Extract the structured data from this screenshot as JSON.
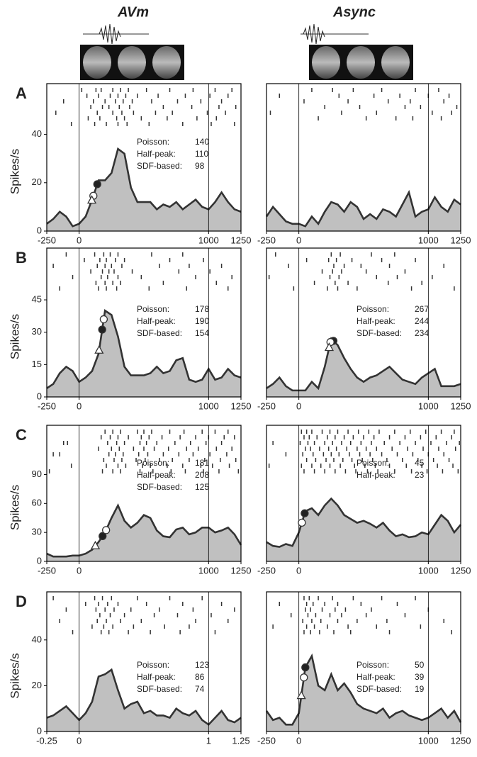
{
  "columns": [
    "AVm",
    "Async"
  ],
  "rows": [
    "A",
    "B",
    "C",
    "D"
  ],
  "y_label": "Spikes/s",
  "chart_data": [
    {
      "type": "area",
      "x": [
        -250,
        -200,
        -150,
        -100,
        -50,
        0,
        50,
        100,
        150,
        200,
        250,
        300,
        350,
        400,
        450,
        500,
        550,
        600,
        650,
        700,
        750,
        800,
        850,
        900,
        950,
        1000,
        1050,
        1100,
        1150,
        1200,
        1250
      ],
      "values": [
        3,
        5,
        8,
        6,
        2,
        3,
        6,
        13,
        21,
        21,
        24,
        34,
        32,
        18,
        12,
        12,
        12,
        9,
        11,
        10,
        12,
        9,
        11,
        13,
        10,
        9,
        12,
        16,
        12,
        9,
        8
      ],
      "xlim": [
        -250,
        1250
      ],
      "xticks": [
        -250,
        0,
        1000,
        1250
      ],
      "ylim": [
        0,
        61
      ],
      "yticks": [
        0,
        20,
        40
      ],
      "latency_labels": [
        "Poisson:",
        "Half-peak:",
        "SDF-based:"
      ],
      "latencies": [
        140,
        110,
        98
      ],
      "raster": [
        [
          20,
          130,
          170,
          260,
          320,
          380,
          520,
          700,
          880,
          1050,
          1180
        ],
        [
          60,
          150,
          240,
          300,
          360,
          450,
          610,
          820,
          1010,
          1150
        ],
        [
          -120,
          110,
          200,
          280,
          340,
          410,
          560,
          760,
          940,
          1100
        ],
        [
          90,
          180,
          230,
          310,
          390,
          650,
          870,
          1080,
          1210
        ],
        [
          -180,
          140,
          260,
          330,
          420,
          590,
          720,
          990,
          1130
        ],
        [
          70,
          160,
          290,
          350,
          480,
          680,
          910,
          1060
        ],
        [
          -60,
          120,
          210,
          300,
          370,
          540,
          800,
          1020,
          1200
        ]
      ]
    },
    {
      "type": "area",
      "x": [
        -250,
        -200,
        -150,
        -100,
        -50,
        0,
        50,
        100,
        150,
        200,
        250,
        300,
        350,
        400,
        450,
        500,
        550,
        600,
        650,
        700,
        750,
        800,
        850,
        900,
        950,
        1000,
        1050,
        1100,
        1150,
        1200,
        1250
      ],
      "values": [
        6,
        10,
        7,
        4,
        3,
        3,
        2,
        6,
        3,
        8,
        12,
        11,
        8,
        12,
        10,
        5,
        7,
        5,
        9,
        8,
        6,
        11,
        16,
        6,
        8,
        9,
        14,
        10,
        8,
        13,
        11
      ],
      "xlim": [
        -250,
        1250
      ],
      "xticks": [
        -250,
        0,
        1000,
        1250
      ],
      "ylim": [
        0,
        61
      ],
      "raster": [
        [
          100,
          260,
          420,
          640,
          900,
          1080
        ],
        [
          -150,
          310,
          580,
          780,
          1000,
          1160
        ],
        [
          40,
          380,
          690,
          860,
          1120
        ],
        [
          200,
          470,
          820,
          940,
          1220
        ],
        [
          -220,
          330,
          600,
          1030,
          1180
        ],
        [
          150,
          520,
          750,
          880,
          1100
        ]
      ]
    },
    {
      "type": "area",
      "x": [
        -250,
        -200,
        -150,
        -100,
        -50,
        0,
        50,
        100,
        150,
        200,
        250,
        300,
        350,
        400,
        450,
        500,
        550,
        600,
        650,
        700,
        750,
        800,
        850,
        900,
        950,
        1000,
        1050,
        1100,
        1150,
        1200,
        1250
      ],
      "values": [
        4,
        6,
        11,
        14,
        12,
        7,
        9,
        12,
        20,
        40,
        38,
        28,
        14,
        10,
        10,
        10,
        11,
        14,
        11,
        12,
        17,
        18,
        8,
        7,
        8,
        13,
        8,
        9,
        13,
        10,
        9
      ],
      "xlim": [
        -250,
        1250
      ],
      "xticks": [
        -250,
        0,
        1000,
        1250
      ],
      "ylim": [
        0,
        69
      ],
      "yticks": [
        0,
        15,
        30,
        45
      ],
      "latency_labels": [
        "Poisson:",
        "Half-peak:",
        "SDF-based:"
      ],
      "latencies": [
        178,
        190,
        154
      ],
      "raster": [
        [
          -100,
          120,
          190,
          240,
          300,
          560,
          800
        ],
        [
          40,
          160,
          210,
          280,
          350,
          700,
          960
        ],
        [
          -200,
          140,
          200,
          250,
          330,
          620,
          850,
          1100
        ],
        [
          90,
          180,
          230,
          270,
          410,
          770,
          1010
        ],
        [
          -50,
          170,
          220,
          300,
          480,
          900,
          1180
        ],
        [
          130,
          200,
          260,
          320,
          650,
          1060
        ],
        [
          -150,
          150,
          210,
          290,
          540,
          830,
          1150
        ]
      ]
    },
    {
      "type": "area",
      "x": [
        -250,
        -200,
        -150,
        -100,
        -50,
        0,
        50,
        100,
        150,
        200,
        250,
        300,
        350,
        400,
        450,
        500,
        550,
        600,
        650,
        700,
        750,
        800,
        850,
        900,
        950,
        1000,
        1050,
        1100,
        1150,
        1200,
        1250
      ],
      "values": [
        4,
        6,
        9,
        5,
        3,
        3,
        3,
        7,
        4,
        14,
        27,
        24,
        18,
        13,
        9,
        7,
        9,
        10,
        12,
        14,
        11,
        8,
        7,
        6,
        9,
        11,
        13,
        5,
        5,
        5,
        6
      ],
      "xlim": [
        -250,
        1250
      ],
      "xticks": [
        -250,
        0,
        1000,
        1250
      ],
      "ylim": [
        0,
        69
      ],
      "latency_labels": [
        "Poisson:",
        "Half-peak:",
        "SDF-based:"
      ],
      "latencies": [
        267,
        244,
        234
      ],
      "raster": [
        [
          -180,
          250,
          320,
          560,
          740
        ],
        [
          60,
          230,
          290,
          410,
          640,
          900
        ],
        [
          -80,
          270,
          350,
          480,
          700,
          1120
        ],
        [
          180,
          260,
          330,
          520,
          820
        ],
        [
          -230,
          240,
          310,
          600,
          760,
          1030
        ],
        [
          120,
          280,
          380,
          690,
          950
        ],
        [
          -40,
          220,
          300,
          450,
          870,
          1200
        ]
      ]
    },
    {
      "type": "area",
      "x": [
        -250,
        -200,
        -150,
        -100,
        -50,
        0,
        50,
        100,
        150,
        200,
        250,
        300,
        350,
        400,
        450,
        500,
        550,
        600,
        650,
        700,
        750,
        800,
        850,
        900,
        950,
        1000,
        1050,
        1100,
        1150,
        1200,
        1250
      ],
      "values": [
        8,
        5,
        5,
        5,
        6,
        6,
        8,
        12,
        20,
        30,
        45,
        58,
        42,
        35,
        40,
        48,
        45,
        32,
        26,
        25,
        33,
        35,
        28,
        30,
        35,
        35,
        30,
        32,
        35,
        28,
        17
      ],
      "xlim": [
        -250,
        1250
      ],
      "xticks": [
        -250,
        0,
        1000,
        1250
      ],
      "ylim": [
        0,
        141
      ],
      "yticks": [
        0,
        30,
        60,
        90
      ],
      "latency_labels": [
        "Poisson:",
        "Half-peak:",
        "SDF-based:"
      ],
      "latencies": [
        181,
        208,
        125
      ],
      "raster": [
        [
          200,
          260,
          320,
          450,
          500,
          560,
          700,
          810,
          950,
          1050,
          1150
        ],
        [
          170,
          240,
          300,
          380,
          480,
          540,
          640,
          780,
          900,
          1000,
          1120,
          1200
        ],
        [
          -120,
          -90,
          220,
          290,
          350,
          470,
          520,
          600,
          740,
          860,
          980,
          1100
        ],
        [
          150,
          250,
          310,
          420,
          500,
          580,
          690,
          830,
          920,
          1060,
          1180
        ],
        [
          -200,
          -150,
          230,
          280,
          340,
          460,
          530,
          650,
          770,
          880,
          1010,
          1140
        ],
        [
          190,
          270,
          330,
          440,
          510,
          620,
          720,
          850,
          970,
          1090,
          1210
        ],
        [
          -60,
          210,
          300,
          360,
          490,
          550,
          680,
          800,
          940,
          1030,
          1160
        ],
        [
          -230,
          180,
          260,
          320,
          470,
          570,
          710,
          820,
          960,
          1080,
          1230
        ]
      ]
    },
    {
      "type": "area",
      "x": [
        -250,
        -200,
        -150,
        -100,
        -50,
        0,
        50,
        100,
        150,
        200,
        250,
        300,
        350,
        400,
        450,
        500,
        550,
        600,
        650,
        700,
        750,
        800,
        850,
        900,
        950,
        1000,
        1050,
        1100,
        1150,
        1200,
        1250
      ],
      "values": [
        20,
        16,
        15,
        18,
        16,
        30,
        52,
        55,
        48,
        58,
        65,
        58,
        48,
        44,
        40,
        42,
        39,
        35,
        40,
        32,
        26,
        28,
        25,
        26,
        30,
        28,
        38,
        48,
        42,
        30,
        38
      ],
      "xlim": [
        -250,
        1250
      ],
      "xticks": [
        -250,
        0,
        1000,
        1250
      ],
      "ylim": [
        0,
        141
      ],
      "latency_labels": [
        "Poisson:",
        "Half-peak:"
      ],
      "latencies": [
        45,
        23
      ],
      "raster": [
        [
          20,
          60,
          100,
          180,
          240,
          300,
          380,
          460,
          540,
          620,
          740,
          860,
          980,
          1100,
          1200
        ],
        [
          40,
          80,
          140,
          220,
          280,
          350,
          420,
          500,
          580,
          700,
          820,
          940,
          1060,
          1180
        ],
        [
          -200,
          10,
          70,
          120,
          200,
          260,
          330,
          400,
          480,
          560,
          660,
          780,
          900,
          1020,
          1140,
          1240
        ],
        [
          50,
          90,
          160,
          230,
          290,
          370,
          450,
          520,
          600,
          720,
          840,
          960,
          1080,
          1210
        ],
        [
          -100,
          30,
          110,
          190,
          250,
          310,
          390,
          470,
          550,
          640,
          760,
          880,
          1000,
          1120
        ],
        [
          60,
          130,
          210,
          270,
          340,
          410,
          490,
          570,
          680,
          800,
          920,
          1040,
          1160
        ],
        [
          -230,
          20,
          100,
          170,
          240,
          320,
          430,
          510,
          590,
          700,
          830,
          950,
          1070,
          1190
        ],
        [
          40,
          120,
          200,
          280,
          360,
          440,
          530,
          610,
          740,
          870,
          990,
          1110,
          1230
        ]
      ]
    },
    {
      "type": "area",
      "x": [
        -0.25,
        -0.2,
        -0.15,
        -0.1,
        -0.05,
        0,
        0.05,
        0.1,
        0.15,
        0.2,
        0.25,
        0.3,
        0.35,
        0.4,
        0.45,
        0.5,
        0.55,
        0.6,
        0.65,
        0.7,
        0.75,
        0.8,
        0.85,
        0.9,
        0.95,
        1,
        1.05,
        1.1,
        1.15,
        1.2,
        1.25
      ],
      "values": [
        6,
        7,
        9,
        11,
        8,
        5,
        8,
        13,
        24,
        25,
        27,
        18,
        10,
        12,
        13,
        8,
        9,
        7,
        7,
        6,
        10,
        8,
        7,
        9,
        5,
        3,
        6,
        9,
        5,
        4,
        6
      ],
      "xlim": [
        -0.25,
        1.25
      ],
      "xticks": [
        -0.25,
        0,
        1,
        1.25
      ],
      "ylim": [
        0,
        61
      ],
      "yticks": [
        0,
        20,
        40
      ],
      "latency_labels": [
        "Poisson:",
        "Half-peak:",
        "SDF-based:"
      ],
      "latencies": [
        123,
        86,
        74
      ],
      "raster": [
        [
          -0.2,
          0.12,
          0.18,
          0.25,
          0.45,
          0.7,
          0.95
        ],
        [
          0.05,
          0.15,
          0.22,
          0.3,
          0.52,
          0.8,
          1.1
        ],
        [
          -0.1,
          0.13,
          0.2,
          0.27,
          0.4,
          0.62,
          0.88,
          1.2
        ],
        [
          0.16,
          0.24,
          0.35,
          0.58,
          0.76,
          1.02
        ],
        [
          -0.15,
          0.14,
          0.21,
          0.32,
          0.48,
          0.9,
          1.15
        ],
        [
          0.1,
          0.19,
          0.26,
          0.42,
          0.66,
          0.85
        ],
        [
          -0.05,
          0.17,
          0.23,
          0.38,
          0.55,
          0.78,
          1.05
        ]
      ]
    },
    {
      "type": "area",
      "x": [
        -250,
        -200,
        -150,
        -100,
        -50,
        0,
        50,
        100,
        150,
        200,
        250,
        300,
        350,
        400,
        450,
        500,
        550,
        600,
        650,
        700,
        750,
        800,
        850,
        900,
        950,
        1000,
        1050,
        1100,
        1150,
        1200,
        1250
      ],
      "values": [
        9,
        5,
        6,
        3,
        3,
        8,
        28,
        33,
        20,
        18,
        25,
        18,
        21,
        17,
        12,
        10,
        9,
        8,
        10,
        6,
        8,
        9,
        7,
        6,
        5,
        6,
        8,
        10,
        6,
        9,
        4
      ],
      "xlim": [
        -250,
        1250
      ],
      "xticks": [
        -250,
        0,
        1000,
        1250
      ],
      "ylim": [
        0,
        61
      ],
      "latency_labels": [
        "Poisson:",
        "Half-peak:",
        "SDF-based:"
      ],
      "latencies": [
        50,
        39,
        19
      ],
      "raster": [
        [
          40,
          80,
          150,
          260,
          420,
          640,
          900
        ],
        [
          -150,
          60,
          110,
          200,
          300,
          480,
          760
        ],
        [
          50,
          90,
          180,
          280,
          360,
          560,
          1000
        ],
        [
          -60,
          70,
          130,
          240,
          330,
          520,
          820
        ],
        [
          30,
          100,
          170,
          300,
          450,
          680,
          1120
        ],
        [
          -200,
          60,
          120,
          220,
          380,
          600,
          940
        ],
        [
          40,
          90,
          160,
          270,
          400,
          700,
          1180
        ]
      ]
    }
  ]
}
